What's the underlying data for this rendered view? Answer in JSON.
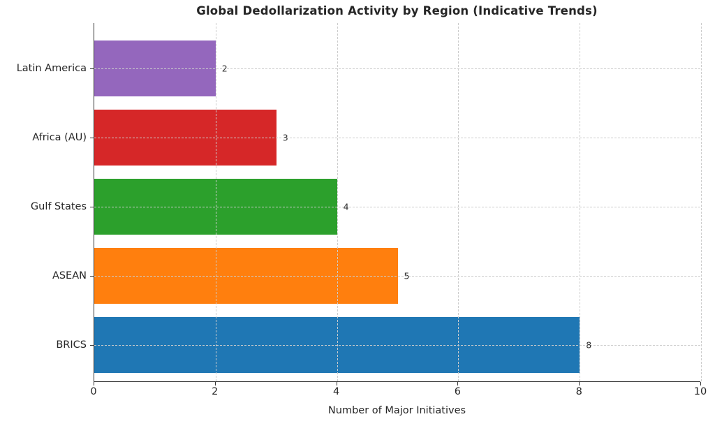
{
  "title": "Global Dedollarization Activity by Region (Indicative Trends)",
  "chart_data": {
    "type": "bar",
    "orientation": "horizontal",
    "title": "Global Dedollarization Activity by Region (Indicative Trends)",
    "xlabel": "Number of Major Initiatives",
    "ylabel": "",
    "categories_top_to_bottom": [
      "Latin America",
      "Africa (AU)",
      "Gulf States",
      "ASEAN",
      "BRICS"
    ],
    "values": [
      2,
      3,
      4,
      5,
      8
    ],
    "value_labels": [
      "2",
      "3",
      "4",
      "5",
      "8"
    ],
    "bar_colors": [
      "#9467bd",
      "#d62728",
      "#2ca02c",
      "#ff7f0e",
      "#1f77b4"
    ],
    "xlim": [
      0,
      10
    ],
    "xticks": [
      0,
      2,
      4,
      6,
      8,
      10
    ],
    "xtick_labels": [
      "0",
      "2",
      "4",
      "6",
      "8",
      "10"
    ],
    "grid": "dashed-both-axes-over-bars",
    "legend": "none"
  },
  "colors": {
    "background": "#ffffff",
    "spine": "#333333",
    "gridline": "#cccccc",
    "text": "#262626",
    "value_label_text": "#333333"
  }
}
